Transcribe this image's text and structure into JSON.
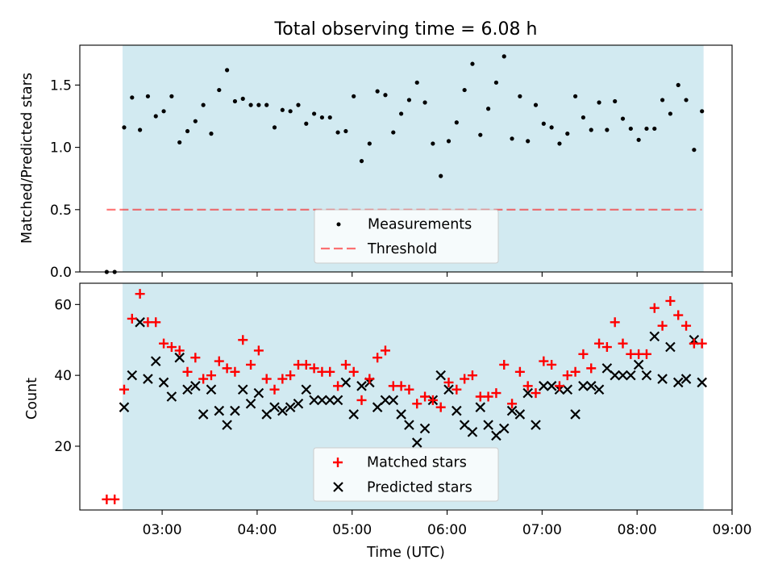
{
  "chart_data": [
    {
      "type": "scatter",
      "title": "Total observing time = 6.08 h",
      "ylabel": "Matched/Predicted stars",
      "xlabel": "",
      "ylim": [
        0,
        1.82
      ],
      "yticks": [
        "0.0",
        "0.5",
        "1.0",
        "1.5"
      ],
      "shaded_window": [
        "02:35",
        "08:42"
      ],
      "colors": {
        "shade": "#add8e6",
        "points": "#000000",
        "threshold": "#ff0000"
      },
      "threshold": 0.5,
      "legend": {
        "placement": "bottom-center",
        "items": [
          "Measurements",
          "Threshold"
        ]
      },
      "series": [
        {
          "name": "Measurements",
          "x": [
            "02:25",
            "02:30",
            "02:36",
            "02:41",
            "02:46",
            "02:51",
            "02:56",
            "03:01",
            "03:06",
            "03:11",
            "03:16",
            "03:21",
            "03:26",
            "03:31",
            "03:36",
            "03:41",
            "03:46",
            "03:51",
            "03:56",
            "04:01",
            "04:06",
            "04:11",
            "04:16",
            "04:21",
            "04:26",
            "04:31",
            "04:36",
            "04:41",
            "04:46",
            "04:51",
            "04:56",
            "05:01",
            "05:06",
            "05:11",
            "05:16",
            "05:21",
            "05:26",
            "05:31",
            "05:36",
            "05:41",
            "05:46",
            "05:51",
            "05:56",
            "06:01",
            "06:06",
            "06:11",
            "06:16",
            "06:21",
            "06:26",
            "06:31",
            "06:36",
            "06:41",
            "06:46",
            "06:51",
            "06:56",
            "07:01",
            "07:06",
            "07:11",
            "07:16",
            "07:21",
            "07:26",
            "07:31",
            "07:36",
            "07:41",
            "07:46",
            "07:51",
            "07:56",
            "08:01",
            "08:06",
            "08:11",
            "08:16",
            "08:21",
            "08:26",
            "08:31",
            "08:36",
            "08:41"
          ],
          "y": [
            0.0,
            0.0,
            1.16,
            1.4,
            1.14,
            1.41,
            1.25,
            1.29,
            1.41,
            1.04,
            1.13,
            1.21,
            1.34,
            1.11,
            1.46,
            1.62,
            1.37,
            1.39,
            1.34,
            1.34,
            1.34,
            1.16,
            1.3,
            1.29,
            1.34,
            1.19,
            1.27,
            1.24,
            1.24,
            1.12,
            1.13,
            1.41,
            0.89,
            1.03,
            1.45,
            1.42,
            1.12,
            1.27,
            1.38,
            1.52,
            1.36,
            1.03,
            0.77,
            1.05,
            1.2,
            1.46,
            1.67,
            1.1,
            1.31,
            1.52,
            1.73,
            1.07,
            1.41,
            1.05,
            1.34,
            1.19,
            1.16,
            1.03,
            1.11,
            1.41,
            1.24,
            1.14,
            1.36,
            1.14,
            1.37,
            1.23,
            1.15,
            1.06,
            1.15,
            1.15,
            1.38,
            1.27,
            1.5,
            1.38,
            0.98,
            1.29
          ]
        }
      ]
    },
    {
      "type": "scatter",
      "title": "",
      "xlabel": "Time (UTC)",
      "ylabel": "Count",
      "ylim": [
        2,
        66
      ],
      "xlim": [
        "02:08",
        "09:00"
      ],
      "xticks": [
        "03:00",
        "04:00",
        "05:00",
        "06:00",
        "07:00",
        "08:00",
        "09:00"
      ],
      "yticks": [
        "20",
        "40",
        "60"
      ],
      "shaded_window": [
        "02:35",
        "08:42"
      ],
      "colors": {
        "shade": "#add8e6",
        "matched": "#ff0000",
        "predicted": "#000000"
      },
      "legend": {
        "placement": "bottom-center",
        "items": [
          "Matched stars",
          "Predicted stars"
        ]
      },
      "x": [
        "02:25",
        "02:30",
        "02:36",
        "02:41",
        "02:46",
        "02:51",
        "02:56",
        "03:01",
        "03:06",
        "03:11",
        "03:16",
        "03:21",
        "03:26",
        "03:31",
        "03:36",
        "03:41",
        "03:46",
        "03:51",
        "03:56",
        "04:01",
        "04:06",
        "04:11",
        "04:16",
        "04:21",
        "04:26",
        "04:31",
        "04:36",
        "04:41",
        "04:46",
        "04:51",
        "04:56",
        "05:01",
        "05:06",
        "05:11",
        "05:16",
        "05:21",
        "05:26",
        "05:31",
        "05:36",
        "05:41",
        "05:46",
        "05:51",
        "05:56",
        "06:01",
        "06:06",
        "06:11",
        "06:16",
        "06:21",
        "06:26",
        "06:31",
        "06:36",
        "06:41",
        "06:46",
        "06:51",
        "06:56",
        "07:01",
        "07:06",
        "07:11",
        "07:16",
        "07:21",
        "07:26",
        "07:31",
        "07:36",
        "07:41",
        "07:46",
        "07:51",
        "07:56",
        "08:01",
        "08:06",
        "08:11",
        "08:16",
        "08:21",
        "08:26",
        "08:31",
        "08:36",
        "08:41"
      ],
      "series": [
        {
          "name": "Matched stars",
          "values": [
            5,
            5,
            36,
            56,
            63,
            55,
            55,
            49,
            48,
            47,
            41,
            45,
            39,
            40,
            44,
            42,
            41,
            50,
            43,
            47,
            39,
            36,
            39,
            40,
            43,
            43,
            42,
            41,
            41,
            37,
            43,
            41,
            33,
            39,
            45,
            47,
            37,
            37,
            36,
            32,
            34,
            33,
            31,
            38,
            36,
            39,
            40,
            34,
            34,
            35,
            43,
            32,
            41,
            37,
            35,
            44,
            43,
            37,
            40,
            41,
            46,
            42,
            49,
            48,
            55,
            49,
            46,
            46,
            46,
            59,
            54,
            61,
            57,
            54,
            49,
            49
          ]
        },
        {
          "name": "Predicted stars",
          "values": [
            null,
            null,
            31,
            40,
            55,
            39,
            44,
            38,
            34,
            45,
            36,
            37,
            29,
            36,
            30,
            26,
            30,
            36,
            32,
            35,
            29,
            31,
            30,
            31,
            32,
            36,
            33,
            33,
            33,
            33,
            38,
            29,
            37,
            38,
            31,
            33,
            33,
            29,
            26,
            21,
            25,
            33,
            40,
            36,
            30,
            26,
            24,
            31,
            26,
            23,
            25,
            30,
            29,
            35,
            26,
            37,
            37,
            36,
            36,
            29,
            37,
            37,
            36,
            42,
            40,
            40,
            40,
            43,
            40,
            51,
            39,
            48,
            38,
            39,
            50,
            38
          ]
        }
      ]
    }
  ]
}
